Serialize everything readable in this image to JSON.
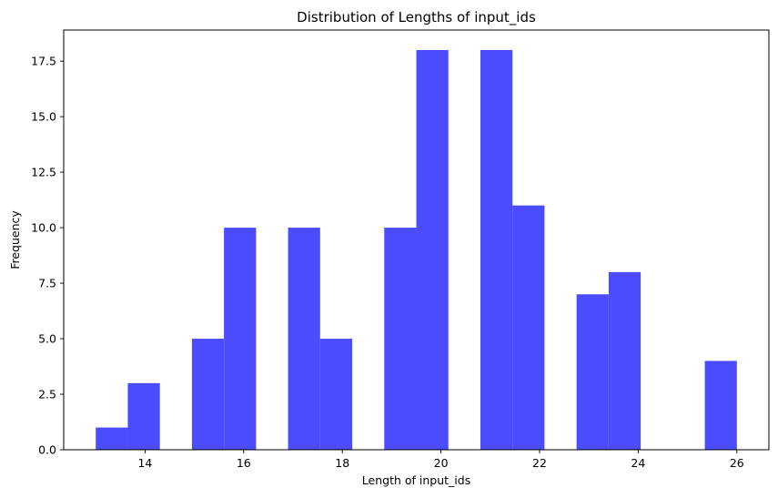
{
  "chart_data": {
    "type": "bar",
    "title": "Distribution of Lengths of input_ids",
    "xlabel": "Length of input_ids",
    "ylabel": "Frequency",
    "xlim": [
      12.35,
      26.65
    ],
    "ylim": [
      0,
      18.9
    ],
    "bin_edges": [
      13.0,
      13.65,
      14.3,
      14.95,
      15.6,
      16.25,
      16.9,
      17.55,
      18.2,
      18.85,
      19.5,
      20.15,
      20.8,
      21.45,
      22.1,
      22.75,
      23.4,
      24.05,
      24.7,
      25.35,
      26.0
    ],
    "values": [
      1,
      3,
      0,
      5,
      10,
      0,
      10,
      5,
      0,
      10,
      18,
      0,
      18,
      11,
      0,
      7,
      8,
      0,
      0,
      4
    ],
    "x_ticks": [
      14,
      16,
      18,
      20,
      22,
      24,
      26
    ],
    "x_tick_labels": [
      "14",
      "16",
      "18",
      "20",
      "22",
      "24",
      "26"
    ],
    "y_ticks": [
      0,
      2.5,
      5,
      7.5,
      10,
      12.5,
      15,
      17.5
    ],
    "y_tick_labels": [
      "0.0",
      "2.5",
      "5.0",
      "7.5",
      "10.0",
      "12.5",
      "15.0",
      "17.5"
    ],
    "bar_color": "#4b4bff",
    "grid": false,
    "legend": false
  }
}
